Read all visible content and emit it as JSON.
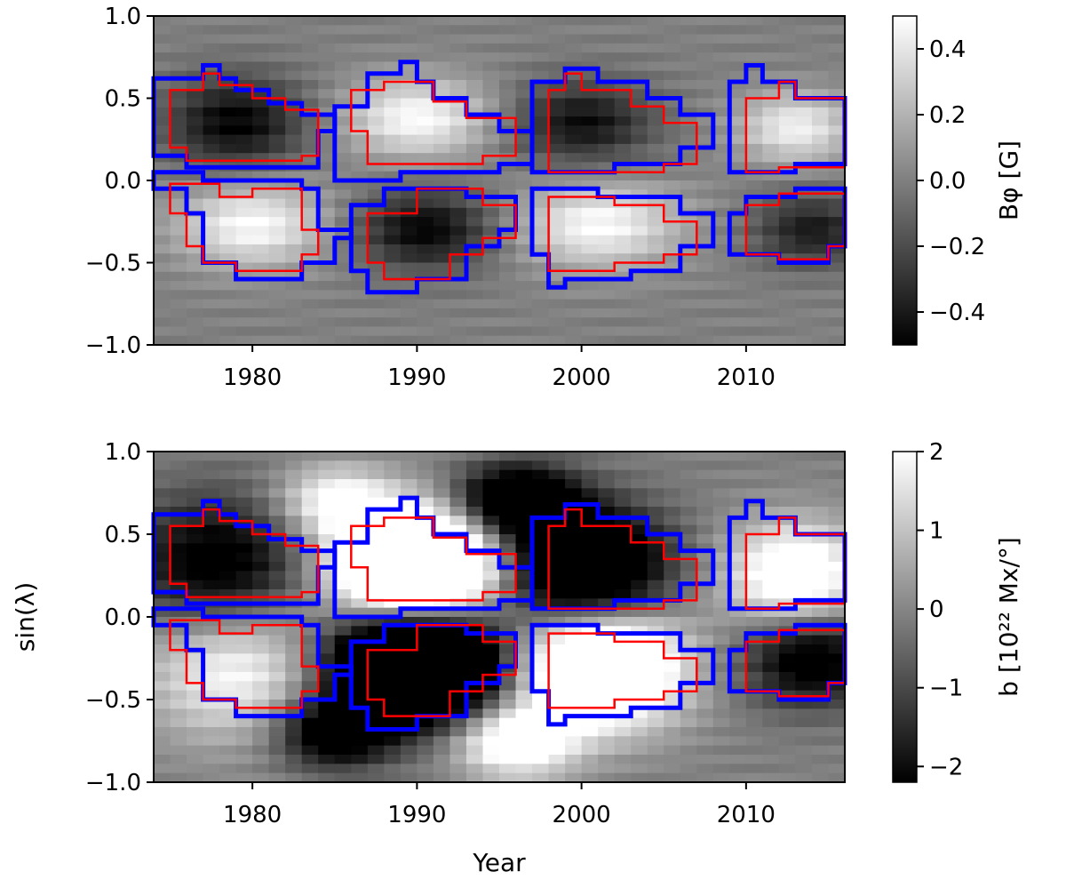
{
  "figure": {
    "xlabel": "Year",
    "ylabel": "sin(λ)"
  },
  "chart_data": [
    {
      "type": "heatmap",
      "name": "top",
      "colormap": "gray",
      "xlim": [
        1974,
        2016
      ],
      "ylim": [
        -1.0,
        1.0
      ],
      "xticks": [
        1980,
        1990,
        2000,
        2010
      ],
      "xtick_labels": [
        "1980",
        "1990",
        "2000",
        "2010"
      ],
      "yticks": [
        -1.0,
        -0.5,
        0.0,
        0.5,
        1.0
      ],
      "ytick_labels": [
        "−1.0",
        "−0.5",
        "0.0",
        "0.5",
        "1.0"
      ],
      "colorbar": {
        "label": "Bφ [G]",
        "range": [
          -0.5,
          0.5
        ],
        "ticks": [
          -0.4,
          -0.2,
          0.0,
          0.2,
          0.4
        ],
        "tick_labels": [
          "−0.4",
          "−0.2",
          "0.0",
          "0.2",
          "0.4"
        ]
      },
      "blobs": [
        {
          "cx": 1979,
          "cy": 0.35,
          "sx": 3.0,
          "sy": 0.2,
          "v": -0.55
        },
        {
          "cx": 1980,
          "cy": -0.27,
          "sx": 3.2,
          "sy": 0.18,
          "v": 0.55
        },
        {
          "cx": 1990,
          "cy": 0.38,
          "sx": 3.2,
          "sy": 0.17,
          "v": 0.55
        },
        {
          "cx": 1990.5,
          "cy": -0.3,
          "sx": 3.0,
          "sy": 0.17,
          "v": -0.55
        },
        {
          "cx": 2000,
          "cy": 0.35,
          "sx": 3.0,
          "sy": 0.18,
          "v": -0.5
        },
        {
          "cx": 2001,
          "cy": -0.27,
          "sx": 3.5,
          "sy": 0.18,
          "v": 0.55
        },
        {
          "cx": 2013,
          "cy": 0.32,
          "sx": 2.5,
          "sy": 0.15,
          "v": 0.5
        },
        {
          "cx": 2014,
          "cy": -0.3,
          "sx": 2.5,
          "sy": 0.15,
          "v": -0.45
        }
      ]
    },
    {
      "type": "heatmap",
      "name": "bottom",
      "colormap": "gray",
      "xlim": [
        1974,
        2016
      ],
      "ylim": [
        -1.0,
        1.0
      ],
      "xticks": [
        1980,
        1990,
        2000,
        2010
      ],
      "xtick_labels": [
        "1980",
        "1990",
        "2000",
        "2010"
      ],
      "yticks": [
        -1.0,
        -0.5,
        0.0,
        0.5,
        1.0
      ],
      "ytick_labels": [
        "−1.0",
        "−0.5",
        "0.0",
        "0.5",
        "1.0"
      ],
      "colorbar": {
        "label": "b [10²² Mx/°]",
        "range": [
          -2.2,
          2.0
        ],
        "ticks": [
          -2,
          -1,
          0,
          1,
          2
        ],
        "tick_labels": [
          "−2",
          "−1",
          "0",
          "1",
          "2"
        ]
      },
      "blobs": [
        {
          "cx": 1978,
          "cy": 0.3,
          "sx": 4.0,
          "sy": 0.3,
          "v": -0.7
        },
        {
          "cx": 1979,
          "cy": -0.3,
          "sx": 4.0,
          "sy": 0.3,
          "v": 0.6
        },
        {
          "cx": 1990,
          "cy": 0.32,
          "sx": 3.5,
          "sy": 0.22,
          "v": 1.8
        },
        {
          "cx": 1990,
          "cy": -0.3,
          "sx": 3.5,
          "sy": 0.22,
          "v": -2.0
        },
        {
          "cx": 2000,
          "cy": 0.3,
          "sx": 3.5,
          "sy": 0.25,
          "v": -1.2
        },
        {
          "cx": 2001,
          "cy": -0.3,
          "sx": 3.5,
          "sy": 0.25,
          "v": 1.3
        },
        {
          "cx": 2013,
          "cy": 0.25,
          "sx": 3.0,
          "sy": 0.22,
          "v": 0.8
        },
        {
          "cx": 2014,
          "cy": -0.25,
          "sx": 3.0,
          "sy": 0.2,
          "v": -0.7
        },
        {
          "cx": 1985,
          "cy": 0.7,
          "sx": 2.5,
          "sy": 0.15,
          "v": 0.6
        },
        {
          "cx": 1996,
          "cy": 0.7,
          "sx": 2.5,
          "sy": 0.15,
          "v": -1.0
        },
        {
          "cx": 1985,
          "cy": -0.7,
          "sx": 2.5,
          "sy": 0.15,
          "v": -0.8
        },
        {
          "cx": 1996,
          "cy": -0.75,
          "sx": 2.5,
          "sy": 0.15,
          "v": 0.8
        }
      ]
    }
  ],
  "contours": {
    "blue_color": "#0000ff",
    "red_color": "#ff0000",
    "blue": [
      [
        [
          1974,
          0.62
        ],
        [
          1977,
          0.62
        ],
        [
          1977,
          0.7
        ],
        [
          1978,
          0.7
        ],
        [
          1978,
          0.62
        ],
        [
          1979,
          0.62
        ],
        [
          1979,
          0.55
        ],
        [
          1981,
          0.55
        ],
        [
          1981,
          0.47
        ],
        [
          1983,
          0.47
        ],
        [
          1983,
          0.4
        ],
        [
          1985,
          0.4
        ],
        [
          1985,
          0.3
        ],
        [
          1984,
          0.3
        ],
        [
          1984,
          0.08
        ],
        [
          1976,
          0.08
        ],
        [
          1976,
          0.15
        ],
        [
          1974,
          0.15
        ]
      ],
      [
        [
          1974,
          -0.05
        ],
        [
          1976,
          -0.05
        ],
        [
          1976,
          -0.2
        ],
        [
          1977,
          -0.2
        ],
        [
          1977,
          -0.5
        ],
        [
          1979,
          -0.5
        ],
        [
          1979,
          -0.6
        ],
        [
          1983,
          -0.6
        ],
        [
          1983,
          -0.5
        ],
        [
          1985,
          -0.5
        ],
        [
          1985,
          -0.35
        ],
        [
          1986,
          -0.35
        ],
        [
          1986,
          -0.3
        ],
        [
          1984,
          -0.3
        ],
        [
          1984,
          -0.05
        ],
        [
          1983,
          -0.05
        ],
        [
          1983,
          0.0
        ],
        [
          1977,
          0.0
        ],
        [
          1977,
          0.05
        ],
        [
          1974,
          0.05
        ]
      ],
      [
        [
          1985,
          0.45
        ],
        [
          1987,
          0.45
        ],
        [
          1987,
          0.65
        ],
        [
          1989,
          0.65
        ],
        [
          1989,
          0.72
        ],
        [
          1990,
          0.72
        ],
        [
          1990,
          0.6
        ],
        [
          1991,
          0.6
        ],
        [
          1991,
          0.5
        ],
        [
          1993,
          0.5
        ],
        [
          1993,
          0.4
        ],
        [
          1995,
          0.4
        ],
        [
          1995,
          0.3
        ],
        [
          1997,
          0.3
        ],
        [
          1997,
          0.1
        ],
        [
          1995,
          0.1
        ],
        [
          1995,
          0.05
        ],
        [
          1989,
          0.05
        ],
        [
          1989,
          0.0
        ],
        [
          1985,
          0.0
        ]
      ],
      [
        [
          1986,
          -0.15
        ],
        [
          1988,
          -0.15
        ],
        [
          1988,
          -0.05
        ],
        [
          1993,
          -0.05
        ],
        [
          1993,
          -0.1
        ],
        [
          1996,
          -0.1
        ],
        [
          1996,
          -0.3
        ],
        [
          1995,
          -0.3
        ],
        [
          1995,
          -0.4
        ],
        [
          1993,
          -0.4
        ],
        [
          1993,
          -0.6
        ],
        [
          1990,
          -0.6
        ],
        [
          1990,
          -0.68
        ],
        [
          1987,
          -0.68
        ],
        [
          1987,
          -0.55
        ],
        [
          1986,
          -0.55
        ]
      ],
      [
        [
          1997,
          0.6
        ],
        [
          1999,
          0.6
        ],
        [
          1999,
          0.68
        ],
        [
          2001,
          0.68
        ],
        [
          2001,
          0.6
        ],
        [
          2004,
          0.6
        ],
        [
          2004,
          0.5
        ],
        [
          2006,
          0.5
        ],
        [
          2006,
          0.4
        ],
        [
          2008,
          0.4
        ],
        [
          2008,
          0.2
        ],
        [
          2006,
          0.2
        ],
        [
          2006,
          0.1
        ],
        [
          2002,
          0.1
        ],
        [
          2002,
          0.05
        ],
        [
          1997,
          0.05
        ]
      ],
      [
        [
          1997,
          -0.05
        ],
        [
          2001,
          -0.05
        ],
        [
          2001,
          -0.1
        ],
        [
          2006,
          -0.1
        ],
        [
          2006,
          -0.2
        ],
        [
          2008,
          -0.2
        ],
        [
          2008,
          -0.4
        ],
        [
          2006,
          -0.4
        ],
        [
          2006,
          -0.55
        ],
        [
          2003,
          -0.55
        ],
        [
          2003,
          -0.6
        ],
        [
          1999,
          -0.6
        ],
        [
          1999,
          -0.65
        ],
        [
          1998,
          -0.65
        ],
        [
          1998,
          -0.45
        ],
        [
          1997,
          -0.45
        ]
      ],
      [
        [
          2009,
          0.6
        ],
        [
          2010,
          0.6
        ],
        [
          2010,
          0.7
        ],
        [
          2011,
          0.7
        ],
        [
          2011,
          0.6
        ],
        [
          2013,
          0.6
        ],
        [
          2013,
          0.5
        ],
        [
          2016,
          0.5
        ],
        [
          2016,
          0.1
        ],
        [
          2013,
          0.1
        ],
        [
          2013,
          0.05
        ],
        [
          2009,
          0.05
        ]
      ],
      [
        [
          2009,
          -0.2
        ],
        [
          2010,
          -0.2
        ],
        [
          2010,
          -0.1
        ],
        [
          2013,
          -0.1
        ],
        [
          2013,
          -0.05
        ],
        [
          2016,
          -0.05
        ],
        [
          2016,
          -0.4
        ],
        [
          2015,
          -0.4
        ],
        [
          2015,
          -0.5
        ],
        [
          2012,
          -0.5
        ],
        [
          2012,
          -0.45
        ],
        [
          2009,
          -0.45
        ]
      ]
    ],
    "red": [
      [
        [
          1975,
          0.55
        ],
        [
          1977,
          0.55
        ],
        [
          1977,
          0.65
        ],
        [
          1978,
          0.65
        ],
        [
          1978,
          0.58
        ],
        [
          1980,
          0.58
        ],
        [
          1980,
          0.5
        ],
        [
          1982,
          0.5
        ],
        [
          1982,
          0.43
        ],
        [
          1984,
          0.43
        ],
        [
          1984,
          0.15
        ],
        [
          1983,
          0.15
        ],
        [
          1983,
          0.12
        ],
        [
          1976,
          0.12
        ],
        [
          1976,
          0.2
        ],
        [
          1975,
          0.2
        ]
      ],
      [
        [
          1975,
          -0.02
        ],
        [
          1978,
          -0.02
        ],
        [
          1978,
          -0.1
        ],
        [
          1980,
          -0.1
        ],
        [
          1980,
          -0.05
        ],
        [
          1983,
          -0.05
        ],
        [
          1983,
          -0.3
        ],
        [
          1984,
          -0.3
        ],
        [
          1984,
          -0.45
        ],
        [
          1983,
          -0.45
        ],
        [
          1983,
          -0.55
        ],
        [
          1979,
          -0.55
        ],
        [
          1979,
          -0.5
        ],
        [
          1977,
          -0.5
        ],
        [
          1977,
          -0.4
        ],
        [
          1976,
          -0.4
        ],
        [
          1976,
          -0.2
        ],
        [
          1975,
          -0.2
        ]
      ],
      [
        [
          1986,
          0.55
        ],
        [
          1988,
          0.55
        ],
        [
          1988,
          0.6
        ],
        [
          1991,
          0.6
        ],
        [
          1991,
          0.48
        ],
        [
          1993,
          0.48
        ],
        [
          1993,
          0.38
        ],
        [
          1996,
          0.38
        ],
        [
          1996,
          0.15
        ],
        [
          1994,
          0.15
        ],
        [
          1994,
          0.1
        ],
        [
          1987,
          0.1
        ],
        [
          1987,
          0.3
        ],
        [
          1986,
          0.3
        ]
      ],
      [
        [
          1987,
          -0.2
        ],
        [
          1990,
          -0.2
        ],
        [
          1990,
          -0.05
        ],
        [
          1994,
          -0.05
        ],
        [
          1994,
          -0.15
        ],
        [
          1996,
          -0.15
        ],
        [
          1996,
          -0.35
        ],
        [
          1994,
          -0.35
        ],
        [
          1994,
          -0.45
        ],
        [
          1992,
          -0.45
        ],
        [
          1992,
          -0.6
        ],
        [
          1988,
          -0.6
        ],
        [
          1988,
          -0.5
        ],
        [
          1987,
          -0.5
        ]
      ],
      [
        [
          1998,
          0.55
        ],
        [
          1999,
          0.55
        ],
        [
          1999,
          0.65
        ],
        [
          2000,
          0.65
        ],
        [
          2000,
          0.55
        ],
        [
          2003,
          0.55
        ],
        [
          2003,
          0.45
        ],
        [
          2005,
          0.45
        ],
        [
          2005,
          0.35
        ],
        [
          2007,
          0.35
        ],
        [
          2007,
          0.1
        ],
        [
          2005,
          0.1
        ],
        [
          2005,
          0.05
        ],
        [
          1998,
          0.05
        ]
      ],
      [
        [
          1998,
          -0.1
        ],
        [
          2002,
          -0.1
        ],
        [
          2002,
          -0.15
        ],
        [
          2005,
          -0.15
        ],
        [
          2005,
          -0.25
        ],
        [
          2007,
          -0.25
        ],
        [
          2007,
          -0.45
        ],
        [
          2005,
          -0.45
        ],
        [
          2005,
          -0.5
        ],
        [
          2002,
          -0.5
        ],
        [
          2002,
          -0.55
        ],
        [
          1998,
          -0.55
        ]
      ],
      [
        [
          2010,
          0.5
        ],
        [
          2012,
          0.5
        ],
        [
          2012,
          0.6
        ],
        [
          2013,
          0.6
        ],
        [
          2013,
          0.5
        ],
        [
          2016,
          0.5
        ],
        [
          2016,
          0.08
        ],
        [
          2012,
          0.08
        ],
        [
          2012,
          0.05
        ],
        [
          2010,
          0.05
        ]
      ],
      [
        [
          2010,
          -0.15
        ],
        [
          2012,
          -0.15
        ],
        [
          2012,
          -0.08
        ],
        [
          2016,
          -0.08
        ],
        [
          2016,
          -0.4
        ],
        [
          2015,
          -0.4
        ],
        [
          2015,
          -0.48
        ],
        [
          2012,
          -0.48
        ],
        [
          2012,
          -0.45
        ],
        [
          2010,
          -0.45
        ]
      ]
    ]
  }
}
